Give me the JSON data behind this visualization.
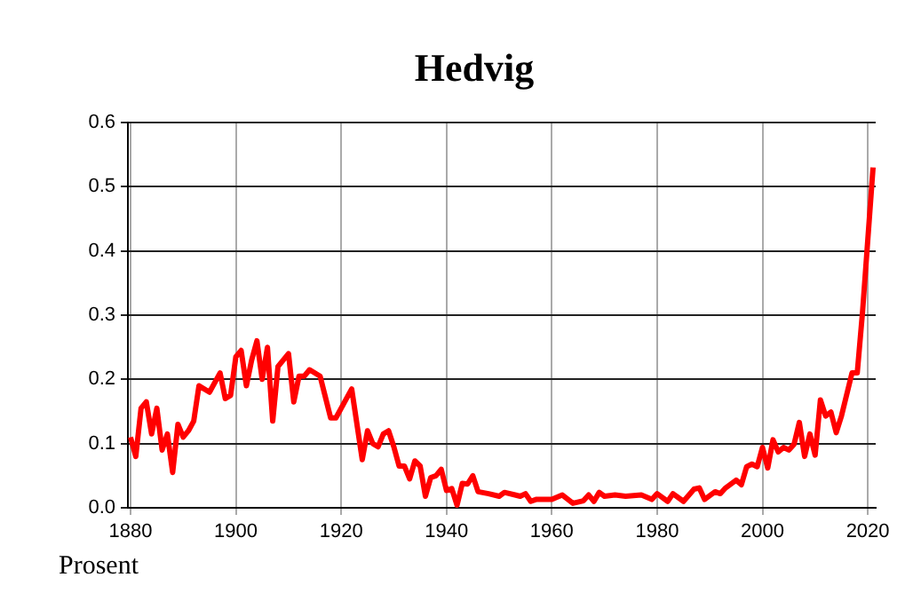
{
  "chart_data": {
    "type": "line",
    "title": "Hedvig",
    "ylabel": "Prosent",
    "xlim": [
      1879.5,
      2021.5
    ],
    "xticks": [
      1880,
      1900,
      1920,
      1940,
      1960,
      1980,
      2000,
      2020
    ],
    "ylim": [
      0,
      0.6
    ],
    "yticks": [
      {
        "value": 0,
        "label": "0.0"
      },
      0.1,
      0.2,
      0.3,
      0.4,
      0.5,
      0.6
    ],
    "grid": true,
    "legend": false,
    "series": [
      {
        "color": "#ff0000",
        "x": [
          1880,
          1881,
          1882,
          1883,
          1884,
          1885,
          1886,
          1887,
          1888,
          1889,
          1890,
          1891,
          1892,
          1893,
          1895,
          1897,
          1898,
          1899,
          1900,
          1901,
          1902,
          1903,
          1904,
          1905,
          1906,
          1907,
          1908,
          1910,
          1911,
          1912,
          1913,
          1914,
          1916,
          1918,
          1919,
          1922,
          1924,
          1925,
          1926,
          1927,
          1928,
          1929,
          1930,
          1931,
          1932,
          1933,
          1934,
          1935,
          1936,
          1937,
          1938,
          1939,
          1940,
          1941,
          1942,
          1943,
          1944,
          1945,
          1946,
          1948,
          1950,
          1951,
          1953,
          1954,
          1955,
          1956,
          1957,
          1960,
          1962,
          1964,
          1966,
          1967,
          1968,
          1969,
          1970,
          1972,
          1974,
          1977,
          1979,
          1980,
          1982,
          1983,
          1985,
          1987,
          1988,
          1989,
          1991,
          1992,
          1993,
          1995,
          1996,
          1997,
          1998,
          1999,
          2000,
          2001,
          2002,
          2003,
          2004,
          2005,
          2006,
          2007,
          2008,
          2009,
          2010,
          2011,
          2012,
          2013,
          2014,
          2015,
          2017,
          2018,
          2019,
          2021
        ],
        "values": [
          0.11,
          0.08,
          0.155,
          0.165,
          0.115,
          0.155,
          0.09,
          0.115,
          0.055,
          0.13,
          0.11,
          0.12,
          0.135,
          0.19,
          0.18,
          0.21,
          0.17,
          0.175,
          0.235,
          0.245,
          0.19,
          0.23,
          0.26,
          0.2,
          0.25,
          0.135,
          0.22,
          0.24,
          0.165,
          0.205,
          0.205,
          0.215,
          0.205,
          0.14,
          0.14,
          0.185,
          0.075,
          0.12,
          0.1,
          0.095,
          0.115,
          0.12,
          0.095,
          0.065,
          0.065,
          0.045,
          0.073,
          0.065,
          0.018,
          0.047,
          0.05,
          0.06,
          0.027,
          0.03,
          0.004,
          0.038,
          0.037,
          0.05,
          0.025,
          0.022,
          0.018,
          0.024,
          0.02,
          0.018,
          0.022,
          0.01,
          0.013,
          0.013,
          0.02,
          0.007,
          0.011,
          0.02,
          0.01,
          0.024,
          0.018,
          0.02,
          0.018,
          0.02,
          0.013,
          0.022,
          0.01,
          0.022,
          0.01,
          0.029,
          0.031,
          0.013,
          0.025,
          0.022,
          0.031,
          0.043,
          0.036,
          0.064,
          0.068,
          0.064,
          0.094,
          0.062,
          0.106,
          0.087,
          0.094,
          0.09,
          0.099,
          0.133,
          0.08,
          0.115,
          0.082,
          0.168,
          0.143,
          0.149,
          0.117,
          0.143,
          0.21,
          0.21,
          0.305,
          0.53
        ]
      }
    ]
  }
}
